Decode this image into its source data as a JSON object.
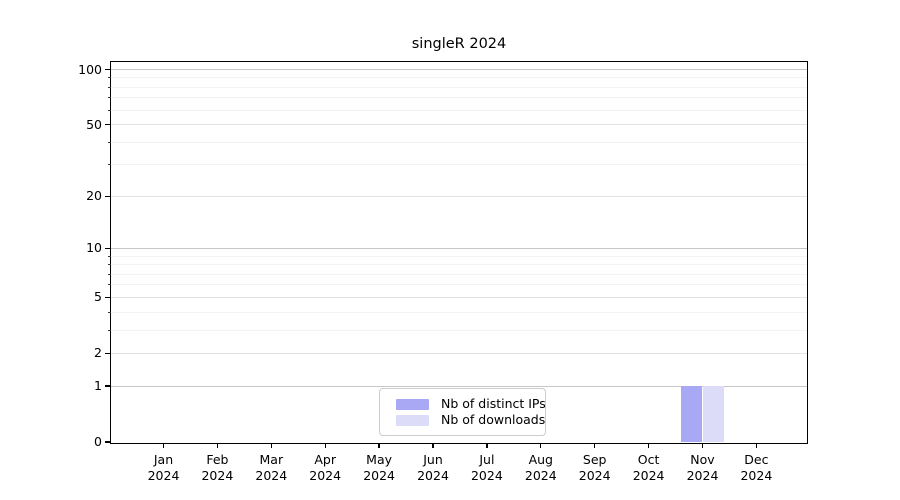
{
  "figure": {
    "background": "#ffffff"
  },
  "chart_data": {
    "type": "bar",
    "title": "singleR 2024",
    "x_categories": [
      {
        "month": "Jan",
        "year": "2024"
      },
      {
        "month": "Feb",
        "year": "2024"
      },
      {
        "month": "Mar",
        "year": "2024"
      },
      {
        "month": "Apr",
        "year": "2024"
      },
      {
        "month": "May",
        "year": "2024"
      },
      {
        "month": "Jun",
        "year": "2024"
      },
      {
        "month": "Jul",
        "year": "2024"
      },
      {
        "month": "Aug",
        "year": "2024"
      },
      {
        "month": "Sep",
        "year": "2024"
      },
      {
        "month": "Oct",
        "year": "2024"
      },
      {
        "month": "Nov",
        "year": "2024"
      },
      {
        "month": "Dec",
        "year": "2024"
      }
    ],
    "series": [
      {
        "name": "Nb of distinct IPs",
        "color": "#a8a8f5",
        "values": [
          0,
          0,
          0,
          0,
          0,
          0,
          0,
          0,
          0,
          0,
          1,
          0
        ]
      },
      {
        "name": "Nb of downloads",
        "color": "#dcdcf9",
        "values": [
          0,
          0,
          0,
          0,
          0,
          0,
          0,
          0,
          0,
          0,
          1,
          0
        ]
      }
    ],
    "y_scale": "log1p",
    "ylim": [
      0,
      100
    ],
    "y_ticks": [
      0,
      1,
      2,
      5,
      10,
      20,
      50,
      100
    ],
    "y_major_pow10": [
      1,
      10,
      100
    ],
    "y_minor_gridlines": [
      3,
      4,
      6,
      7,
      8,
      9,
      30,
      40,
      60,
      70,
      80,
      90
    ],
    "grid": true,
    "legend_position": "lower center"
  },
  "colors": {
    "spine": "#000000",
    "grid_major_pow10": "#c6c6c6",
    "grid_major": "#e3e3e3",
    "grid_minor": "#f3f3f3",
    "legend_border": "#cccccc"
  }
}
